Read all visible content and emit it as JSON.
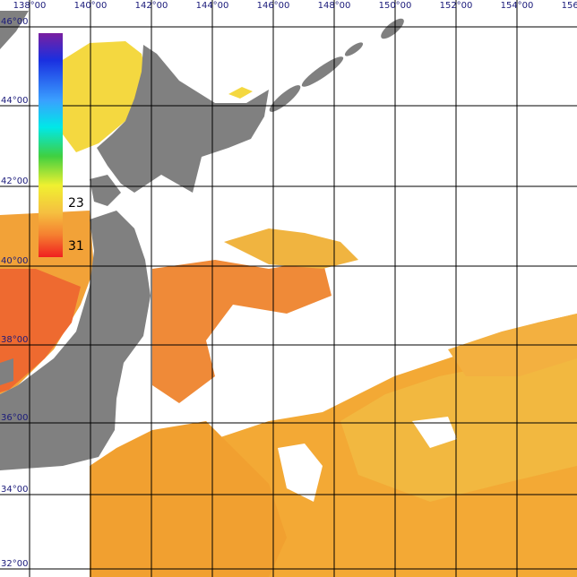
{
  "longitude_labels": [
    "138°00",
    "140°00",
    "142°00",
    "144°00",
    "146°00",
    "148°00",
    "150°00",
    "152°00",
    "154°00",
    "156°00"
  ],
  "latitude_labels": [
    "46°00",
    "44°00",
    "42°00",
    "40°00",
    "38°00",
    "36°00",
    "34°00",
    "32°00"
  ],
  "colorbar": {
    "labels": [
      "23",
      "31"
    ]
  }
}
